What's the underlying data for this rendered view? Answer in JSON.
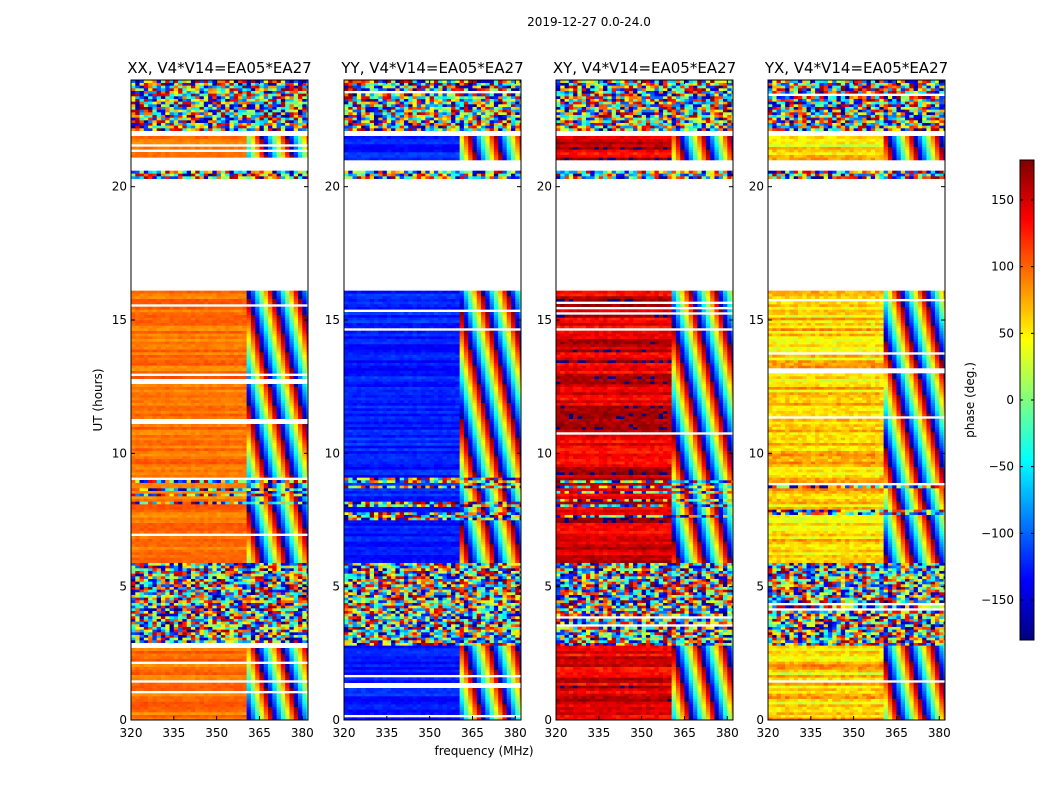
{
  "chart_data": {
    "type": "heatmap",
    "title": "2019-12-27 0.0-24.0",
    "xlabel": "frequency (MHz)",
    "ylabel": "UT (hours)",
    "xlim": [
      320,
      382
    ],
    "ylim": [
      0,
      24
    ],
    "x_ticks": [
      320,
      335,
      350,
      365,
      380
    ],
    "y_ticks": [
      0,
      5,
      10,
      15,
      20
    ],
    "colorbar": {
      "label": "phase (deg.)",
      "range": [
        -180,
        180
      ],
      "ticks": [
        -150,
        -100,
        -50,
        0,
        50,
        100,
        150
      ],
      "tick_labels": [
        "−150",
        "−100",
        "−50",
        "0",
        "50",
        "100",
        "150"
      ],
      "colormap": "jet"
    },
    "gap_ranges_ut": [
      [
        16.0,
        20.3
      ],
      [
        20.6,
        21.0
      ],
      [
        21.9,
        22.1
      ]
    ],
    "feature_boundary_mhz": 360,
    "panels": [
      {
        "title": "XX, V4*V14=EA05*EA27",
        "dominant_phase": 95,
        "phase_spread": 12
      },
      {
        "title": "YY, V4*V14=EA05*EA27",
        "dominant_phase": -125,
        "phase_spread": 14
      },
      {
        "title": "XY, V4*V14=EA05*EA27",
        "dominant_phase": 150,
        "phase_spread": 25
      },
      {
        "title": "YX, V4*V14=EA05*EA27",
        "dominant_phase": 60,
        "phase_spread": 30
      }
    ],
    "colors": {
      "axis": "#000000",
      "background": "#ffffff"
    }
  }
}
